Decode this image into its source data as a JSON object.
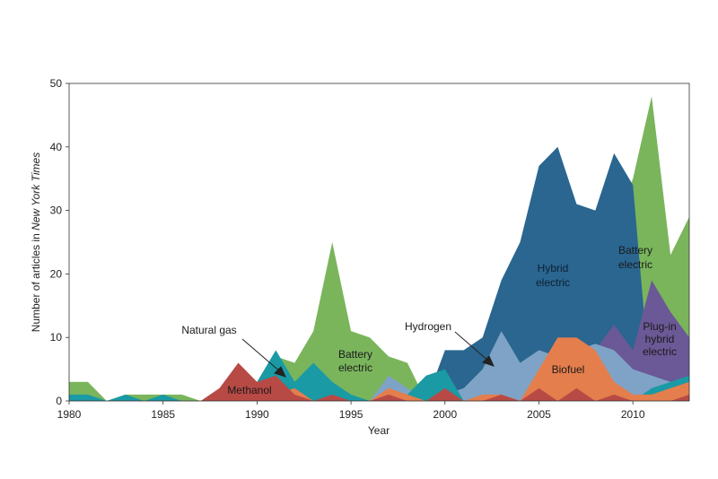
{
  "chart_data": {
    "type": "area",
    "stacked": false,
    "title": "",
    "xlabel": "Year",
    "ylabel_prefix": "Number of articles in ",
    "ylabel_italic": "New York Times",
    "xlim": [
      1980,
      2013
    ],
    "ylim": [
      0,
      50
    ],
    "xticks": [
      1980,
      1985,
      1990,
      1995,
      2000,
      2005,
      2010
    ],
    "yticks": [
      0,
      10,
      20,
      30,
      40,
      50
    ],
    "x": [
      1980,
      1981,
      1982,
      1983,
      1984,
      1985,
      1986,
      1987,
      1988,
      1989,
      1990,
      1991,
      1992,
      1993,
      1994,
      1995,
      1996,
      1997,
      1998,
      1999,
      2000,
      2001,
      2002,
      2003,
      2004,
      2005,
      2006,
      2007,
      2008,
      2009,
      2010,
      2011,
      2012,
      2013
    ],
    "series": [
      {
        "name": "Battery electric",
        "color": "#7ab55c",
        "values": [
          3,
          3,
          0,
          1,
          1,
          1,
          1,
          0,
          1,
          3,
          3,
          7,
          6,
          11,
          25,
          11,
          10,
          7,
          6,
          0,
          2,
          0,
          6,
          7,
          0,
          0,
          0,
          0,
          12,
          27,
          35,
          48,
          23,
          29
        ]
      },
      {
        "name": "Hybrid electric",
        "color": "#2a6690",
        "values": [
          0,
          0,
          0,
          0,
          0,
          0,
          0,
          0,
          0,
          0,
          0,
          0,
          0,
          0,
          0,
          0,
          0,
          0,
          0,
          0,
          8,
          8,
          10,
          19,
          25,
          37,
          40,
          31,
          30,
          39,
          34,
          0,
          0,
          0
        ]
      },
      {
        "name": "Plug-in hybrid electric",
        "color": "#6b5896",
        "values": [
          0,
          0,
          0,
          0,
          0,
          0,
          0,
          0,
          0,
          0,
          0,
          0,
          0,
          0,
          0,
          0,
          0,
          0,
          0,
          0,
          0,
          0,
          0,
          0,
          0,
          0,
          0,
          0,
          8,
          12,
          8,
          19,
          14,
          10
        ]
      },
      {
        "name": "Hydrogen",
        "color": "#7fa3c6",
        "values": [
          0,
          0,
          0,
          0,
          0,
          0,
          0,
          0,
          0,
          0,
          0,
          0,
          0,
          0,
          0,
          0,
          0,
          4,
          2,
          0,
          1,
          2,
          5,
          11,
          6,
          8,
          7,
          8,
          9,
          8,
          5,
          4,
          3,
          2
        ]
      },
      {
        "name": "Natural gas",
        "color": "#1a9aa4",
        "values": [
          1,
          1,
          0,
          1,
          0,
          1,
          0,
          0,
          1,
          2,
          3,
          8,
          3,
          6,
          3,
          1,
          0,
          0,
          1,
          4,
          5,
          0,
          0,
          0,
          0,
          0,
          0,
          0,
          0,
          0,
          0,
          2,
          3,
          4
        ]
      },
      {
        "name": "Biofuel",
        "color": "#e47e4c",
        "values": [
          0,
          0,
          0,
          0,
          0,
          0,
          0,
          0,
          0,
          0,
          0,
          1,
          2,
          0,
          0,
          0,
          0,
          2,
          1,
          0,
          0,
          0,
          1,
          1,
          0,
          5,
          10,
          10,
          8,
          3,
          1,
          1,
          2,
          3
        ]
      },
      {
        "name": "Methanol",
        "color": "#b84a46",
        "values": [
          0,
          0,
          0,
          0,
          0,
          0,
          0,
          0,
          2,
          6,
          3,
          4,
          1,
          0,
          1,
          0,
          0,
          1,
          0,
          0,
          2,
          0,
          0,
          1,
          0,
          2,
          0,
          2,
          0,
          1,
          0,
          0,
          0,
          1
        ]
      }
    ],
    "annotations": {
      "natural_gas": "Natural gas",
      "methanol": "Methanol",
      "battery_electric_1": [
        "Battery",
        "electric"
      ],
      "hydrogen": "Hydrogen",
      "hybrid_electric": [
        "Hybrid",
        "electric"
      ],
      "biofuel": "Biofuel",
      "battery_electric_2": [
        "Battery",
        "electric"
      ],
      "plugin_hybrid": [
        "Plug-in",
        "hybrid",
        "electric"
      ]
    }
  }
}
